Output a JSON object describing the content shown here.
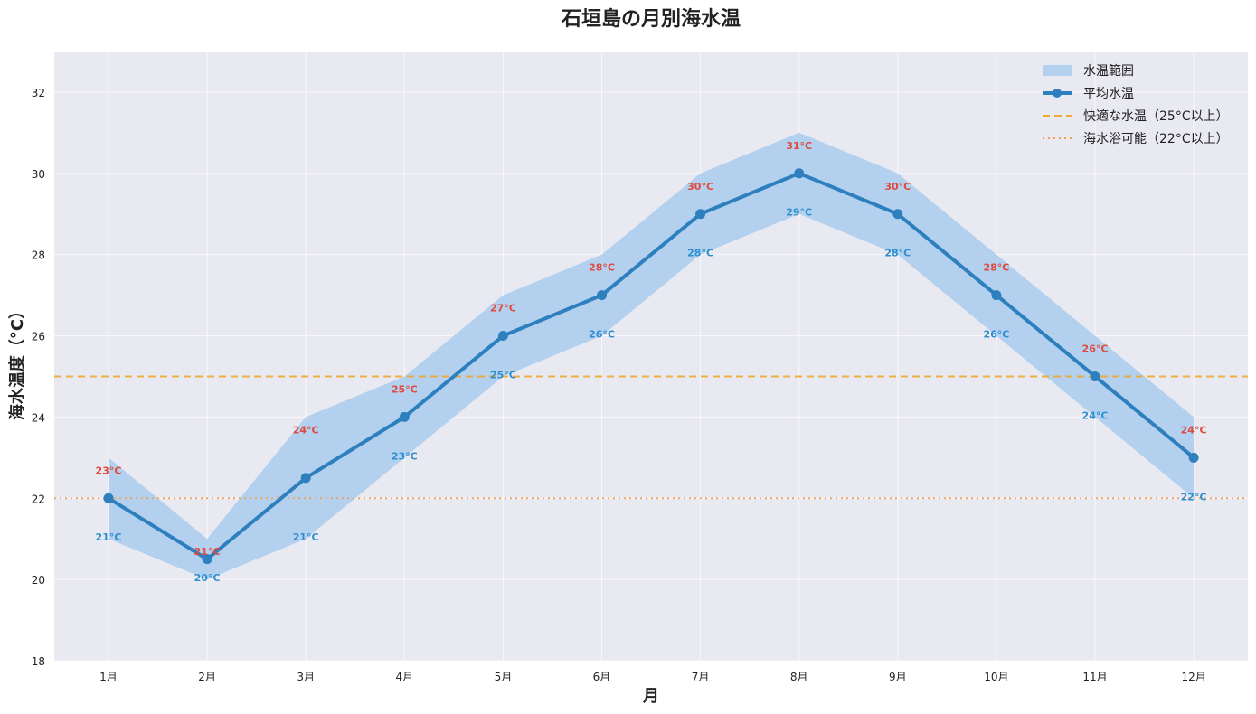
{
  "chart_data": {
    "type": "line",
    "title": "石垣島の月別海水温",
    "xlabel": "月",
    "ylabel": "海水温度（°C）",
    "categories": [
      "1月",
      "2月",
      "3月",
      "4月",
      "5月",
      "6月",
      "7月",
      "8月",
      "9月",
      "10月",
      "11月",
      "12月"
    ],
    "ylim": [
      18,
      33
    ],
    "yticks": [
      18,
      20,
      22,
      24,
      26,
      28,
      30,
      32
    ],
    "grid": true,
    "legend_position": "top-right",
    "series": [
      {
        "name": "平均水温",
        "kind": "line",
        "color": "#2e7fbe",
        "values": [
          22,
          20.5,
          22.5,
          24,
          26,
          27,
          29,
          30,
          29,
          27,
          25,
          23
        ]
      },
      {
        "name": "水温範囲",
        "kind": "band",
        "color": "#a9cdee",
        "lower": [
          21,
          20,
          21,
          23,
          25,
          26,
          28,
          29,
          28,
          26,
          24,
          22
        ],
        "upper": [
          23,
          21,
          24,
          25,
          27,
          28,
          30,
          31,
          30,
          28,
          26,
          24
        ]
      }
    ],
    "reference_lines": [
      {
        "name": "快適な水温（25°C以上）",
        "y": 25,
        "style": "dashed",
        "color": "#f0a830"
      },
      {
        "name": "海水浴可能（22°C以上）",
        "y": 22,
        "style": "dotted",
        "color": "#f0a050"
      }
    ],
    "max_labels": [
      "23°C",
      "21°C",
      "24°C",
      "25°C",
      "27°C",
      "28°C",
      "30°C",
      "31°C",
      "30°C",
      "28°C",
      "26°C",
      "24°C"
    ],
    "min_labels": [
      "21°C",
      "20°C",
      "21°C",
      "23°C",
      "25°C",
      "26°C",
      "28°C",
      "29°C",
      "28°C",
      "26°C",
      "24°C",
      "22°C"
    ],
    "max_label_color": "#e04a3c",
    "min_label_color": "#2e8fd0"
  }
}
